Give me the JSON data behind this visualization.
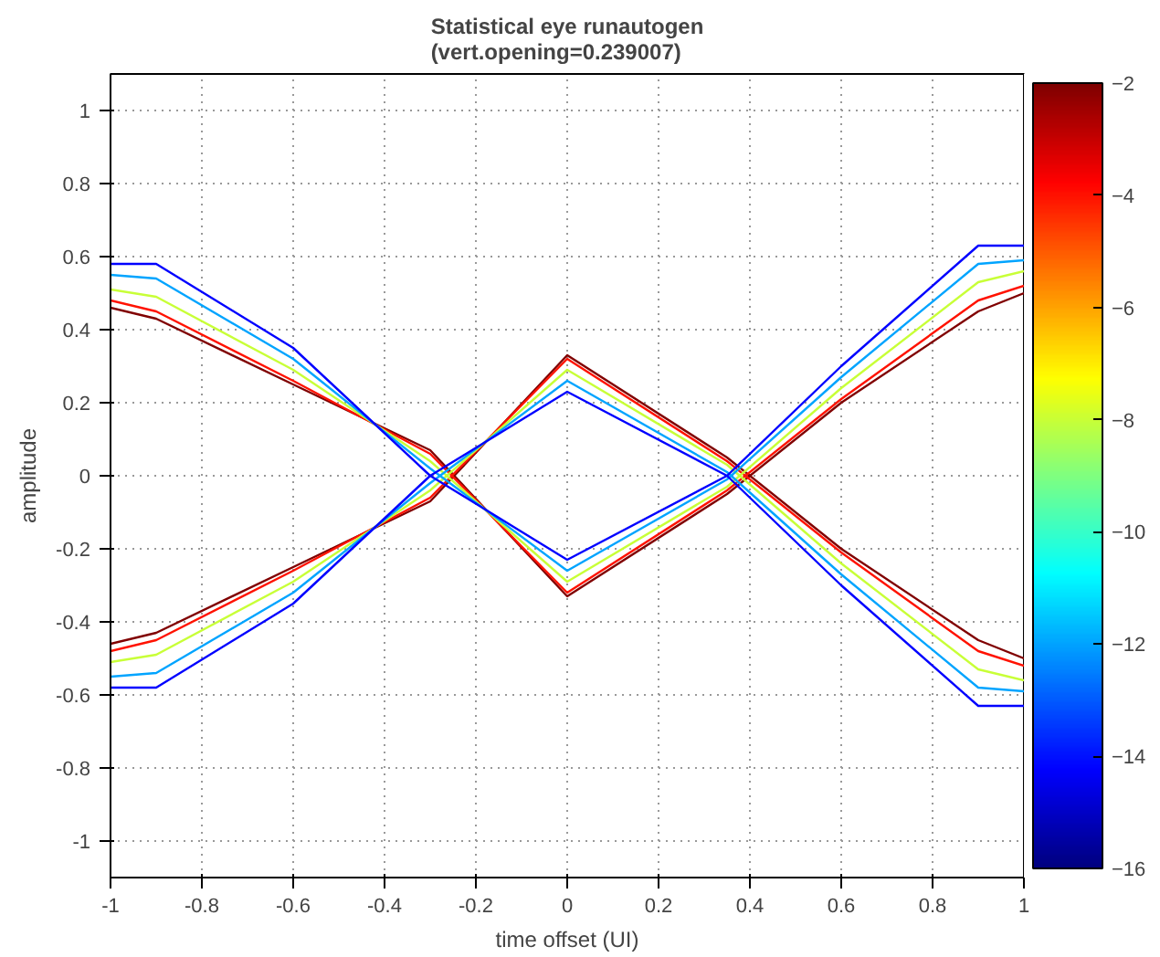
{
  "chart_data": {
    "type": "line",
    "title": "Statistical eye runautogen\n(vert.opening=0.239007)",
    "xlabel": "time offset (UI)",
    "ylabel": "amplitude",
    "x": [
      -1,
      -0.9,
      -0.6,
      -0.3,
      0,
      0.35,
      0.6,
      0.9,
      1
    ],
    "series": [
      {
        "color": "#800000",
        "values": [
          0.46,
          0.43,
          0.25,
          0.07,
          -0.33,
          -0.05,
          0.2,
          0.45,
          0.5
        ]
      },
      {
        "color": "#800000",
        "values": [
          -0.46,
          -0.43,
          -0.25,
          -0.07,
          0.33,
          0.05,
          -0.2,
          -0.45,
          -0.5
        ]
      },
      {
        "color": "#ff1200",
        "values": [
          0.48,
          0.45,
          0.26,
          0.06,
          -0.32,
          -0.04,
          0.21,
          0.48,
          0.52
        ]
      },
      {
        "color": "#ff1200",
        "values": [
          -0.48,
          -0.45,
          -0.26,
          -0.06,
          0.32,
          0.04,
          -0.21,
          -0.48,
          -0.52
        ]
      },
      {
        "color": "#c8ff37",
        "values": [
          0.51,
          0.49,
          0.29,
          0.04,
          -0.29,
          -0.03,
          0.24,
          0.53,
          0.56
        ]
      },
      {
        "color": "#c8ff37",
        "values": [
          -0.51,
          -0.49,
          -0.29,
          -0.04,
          0.29,
          0.03,
          -0.24,
          -0.53,
          -0.56
        ]
      },
      {
        "color": "#00a4ff",
        "values": [
          0.55,
          0.54,
          0.32,
          0.02,
          -0.26,
          -0.01,
          0.27,
          0.58,
          0.59
        ]
      },
      {
        "color": "#00a4ff",
        "values": [
          -0.55,
          -0.54,
          -0.32,
          -0.02,
          0.26,
          0.01,
          -0.27,
          -0.58,
          -0.59
        ]
      },
      {
        "color": "#0000ff",
        "values": [
          0.58,
          0.58,
          0.35,
          0.0,
          -0.23,
          0.0,
          0.3,
          0.63,
          0.63
        ]
      },
      {
        "color": "#0000ff",
        "values": [
          -0.58,
          -0.58,
          -0.35,
          0.0,
          0.23,
          0.0,
          -0.3,
          -0.63,
          -0.63
        ]
      }
    ],
    "xlim": [
      -1,
      1
    ],
    "xticks": [
      -1,
      -0.8,
      -0.6,
      -0.4,
      -0.2,
      0,
      0.2,
      0.4,
      0.6,
      0.8,
      1
    ],
    "ylim": [
      -1.1,
      1.1
    ],
    "yticks": [
      -1,
      -0.8,
      -0.6,
      -0.4,
      -0.2,
      0,
      0.2,
      0.4,
      0.6,
      0.8,
      1
    ],
    "clim": [
      -16,
      -2
    ],
    "cticks": [
      -16,
      -14,
      -12,
      -10,
      -8,
      -6,
      -4,
      -2
    ],
    "grid": true,
    "line_style": "solid",
    "marker": "none"
  }
}
